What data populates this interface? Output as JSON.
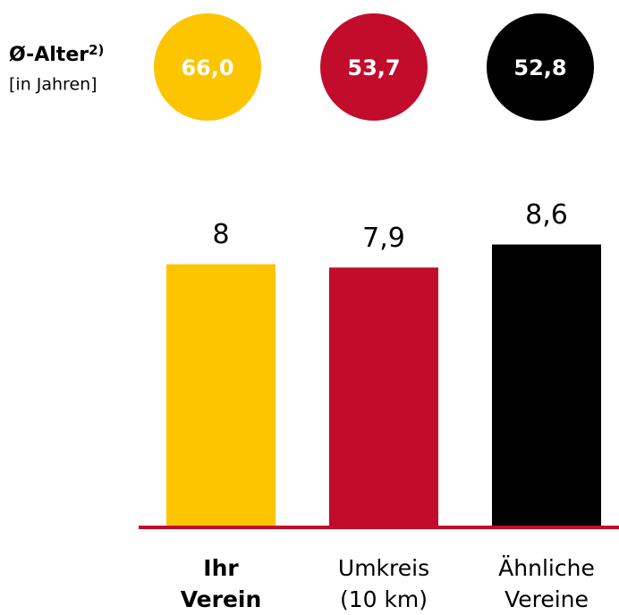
{
  "chart_data": {
    "type": "bar",
    "categories": [
      [
        "Ihr",
        "Verein"
      ],
      [
        "Umkreis",
        "(10 km)"
      ],
      [
        "Ähnliche",
        "Vereine"
      ]
    ],
    "highlight": 0,
    "values": [
      8,
      7.9,
      8.6
    ],
    "value_labels": [
      "8",
      "7,9",
      "8,6"
    ],
    "colors": [
      "#fcc500",
      "#c20c2b",
      "#000000"
    ],
    "baseline_color": "#c20c2b",
    "age": {
      "label": "Ø-Alter",
      "footnote": "2)",
      "unit": "[in Jahren]",
      "values": [
        66.0,
        53.7,
        52.8
      ],
      "value_labels": [
        "66,0",
        "53,7",
        "52,8"
      ]
    }
  }
}
